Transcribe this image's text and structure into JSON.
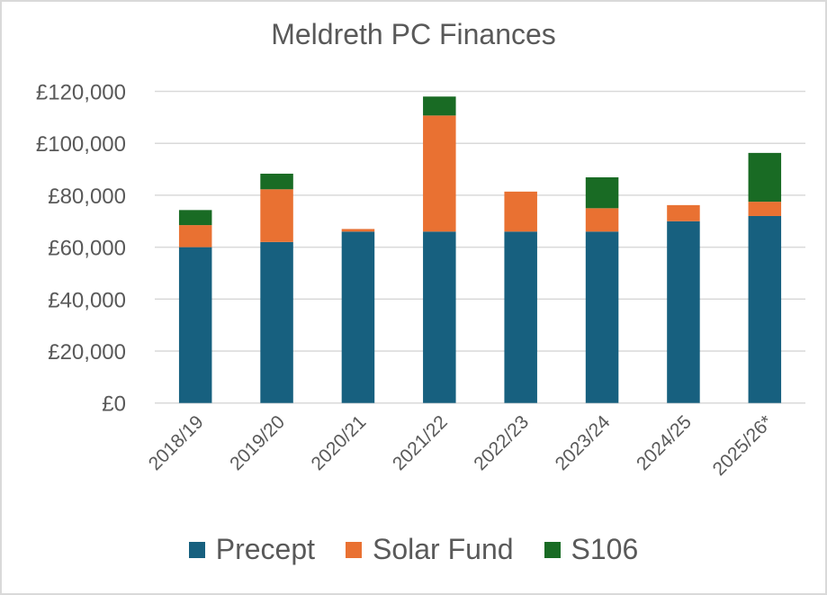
{
  "chart_data": {
    "type": "bar",
    "stacked": true,
    "title": "Meldreth PC Finances",
    "xlabel": "",
    "ylabel": "",
    "ylim": [
      0,
      120000
    ],
    "yticks": [
      0,
      20000,
      40000,
      60000,
      80000,
      100000,
      120000
    ],
    "ytick_labels": [
      "£0",
      "£20,000",
      "£40,000",
      "£60,000",
      "£80,000",
      "£100,000",
      "£120,000"
    ],
    "grid": true,
    "legend_position": "bottom",
    "categories": [
      "2018/19",
      "2019/20",
      "2020/21",
      "2021/22",
      "2022/23",
      "2023/24",
      "2024/25",
      "2025/26*"
    ],
    "series": [
      {
        "name": "Precept",
        "color": "#17607f",
        "values": [
          60000,
          62000,
          66000,
          66000,
          66000,
          66000,
          70000,
          72000
        ]
      },
      {
        "name": "Solar Fund",
        "color": "#e97132",
        "values": [
          8500,
          20300,
          1000,
          44700,
          15400,
          9000,
          6200,
          5500
        ]
      },
      {
        "name": "S106",
        "color": "#196b24",
        "values": [
          5800,
          6000,
          0,
          7300,
          0,
          11900,
          0,
          18800
        ]
      }
    ]
  }
}
